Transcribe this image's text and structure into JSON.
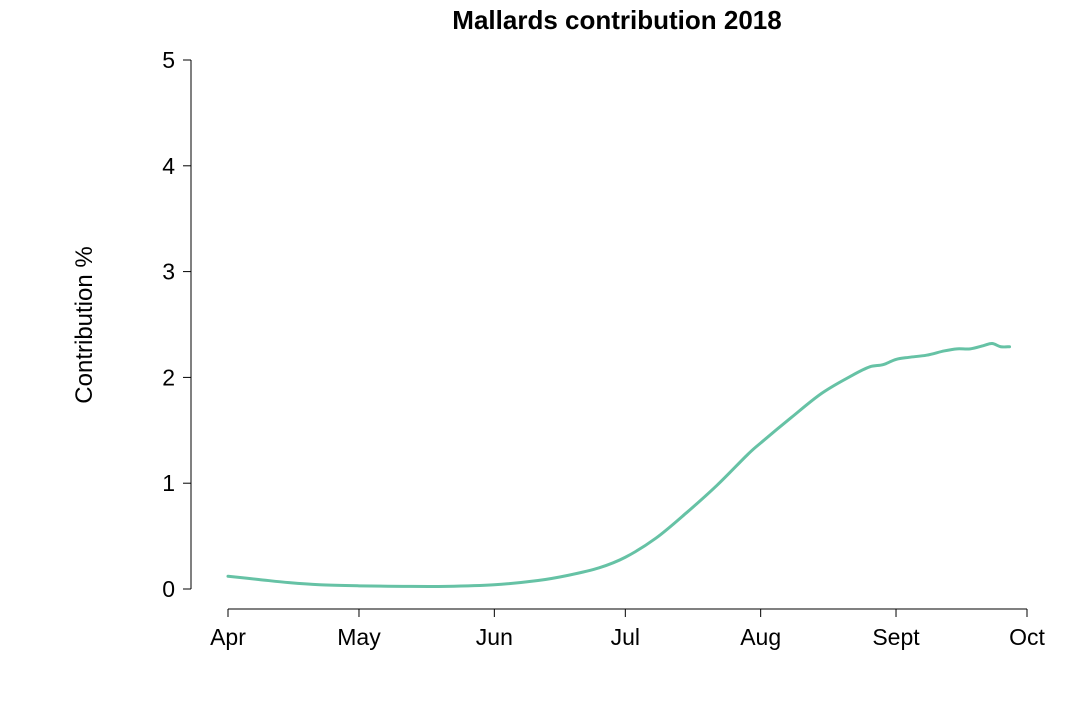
{
  "chart_data": {
    "type": "line",
    "title": "Mallards contribution 2018",
    "xlabel": "",
    "ylabel": "Contribution %",
    "xlim": [
      "2018-04-01",
      "2018-10-01"
    ],
    "ylim": [
      0,
      5
    ],
    "grid": false,
    "x_ticks": [
      {
        "date": "2018-04-01",
        "label": "Apr"
      },
      {
        "date": "2018-05-01",
        "label": "May"
      },
      {
        "date": "2018-06-01",
        "label": "Jun"
      },
      {
        "date": "2018-07-01",
        "label": "Jul"
      },
      {
        "date": "2018-08-01",
        "label": "Aug"
      },
      {
        "date": "2018-09-01",
        "label": "Sept"
      },
      {
        "date": "2018-10-01",
        "label": "Oct"
      }
    ],
    "y_ticks": [
      0,
      1,
      2,
      3,
      4,
      5
    ],
    "series": [
      {
        "color": "#66c2a5",
        "x": [
          "2018-04-01",
          "2018-04-08",
          "2018-04-15",
          "2018-04-22",
          "2018-05-01",
          "2018-05-11",
          "2018-05-21",
          "2018-06-01",
          "2018-06-11",
          "2018-06-18",
          "2018-06-25",
          "2018-07-01",
          "2018-07-08",
          "2018-07-15",
          "2018-07-22",
          "2018-07-29",
          "2018-08-01",
          "2018-08-08",
          "2018-08-15",
          "2018-08-22",
          "2018-08-26",
          "2018-08-29",
          "2018-09-01",
          "2018-09-04",
          "2018-09-08",
          "2018-09-12",
          "2018-09-15",
          "2018-09-18",
          "2018-09-21",
          "2018-09-23",
          "2018-09-25",
          "2018-09-27"
        ],
        "y": [
          0.12,
          0.09,
          0.06,
          0.04,
          0.03,
          0.025,
          0.025,
          0.04,
          0.08,
          0.13,
          0.2,
          0.3,
          0.48,
          0.72,
          0.98,
          1.27,
          1.38,
          1.62,
          1.85,
          2.02,
          2.1,
          2.12,
          2.17,
          2.19,
          2.21,
          2.25,
          2.27,
          2.27,
          2.3,
          2.32,
          2.29,
          2.29
        ]
      }
    ]
  }
}
